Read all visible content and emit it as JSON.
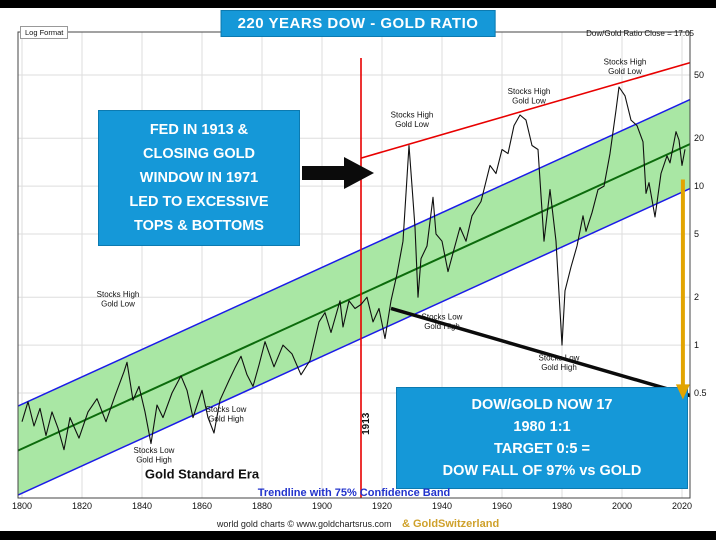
{
  "header": {
    "log_format": "Log Format",
    "ratio_close": "Dow/Gold Ratio Close = 17.05"
  },
  "callouts": {
    "fed": {
      "lines": [
        "FED IN 1913 &",
        "CLOSING GOLD",
        "WINDOW IN 1971",
        "LED TO EXCESSIVE",
        "TOPS & BOTTOMS"
      ]
    },
    "target": {
      "lines": [
        "DOW/GOLD NOW 17",
        "1980 1:1",
        "TARGET 0:5 =",
        "DOW FALL OF 97% vs GOLD"
      ]
    }
  },
  "captions": {
    "trendline": "Trendline with 75% Confidence Band"
  },
  "credits": {
    "source": "world gold charts © www.goldchartsrus.com",
    "brand": "& GoldSwitzerland"
  },
  "colors": {
    "callout_blue": "#1598d8",
    "band_green": "#a9e7a4",
    "trend_green": "#0c6b0c",
    "channel_blue": "#1b1be8",
    "resistance_red": "#e80000",
    "support_black": "#0b0b0b",
    "arrow_gold": "#e2a400",
    "brand_gold": "#cfa12b",
    "caption_blue": "#2233cc"
  },
  "chart_data": {
    "type": "line",
    "title": "220 YEARS DOW - GOLD RATIO",
    "y_scale": "log",
    "xlim": [
      1798,
      2023
    ],
    "ylim": [
      0.11,
      85
    ],
    "x_ticks": [
      1800,
      1820,
      1840,
      1860,
      1880,
      1900,
      1920,
      1940,
      1960,
      1980,
      2000,
      2020
    ],
    "y_ticks": [
      50,
      20,
      10,
      5,
      2,
      1,
      0.5
    ],
    "grid": true,
    "series": [
      {
        "name": "Dow/Gold Ratio",
        "x": [
          1800,
          1802,
          1804,
          1806,
          1808,
          1810,
          1812,
          1814,
          1816,
          1819,
          1822,
          1825,
          1828,
          1831,
          1834,
          1835,
          1837,
          1839,
          1841,
          1843,
          1845,
          1847,
          1850,
          1853,
          1855,
          1857,
          1860,
          1862,
          1864,
          1866,
          1869,
          1871,
          1873,
          1875,
          1877,
          1879,
          1881,
          1884,
          1887,
          1890,
          1893,
          1896,
          1899,
          1901,
          1903,
          1906,
          1907,
          1909,
          1911,
          1913,
          1915,
          1917,
          1919,
          1921,
          1923,
          1925,
          1927,
          1929,
          1930,
          1931,
          1932,
          1933,
          1935,
          1937,
          1938,
          1940,
          1942,
          1944,
          1946,
          1948,
          1950,
          1953,
          1956,
          1958,
          1960,
          1962,
          1964,
          1966,
          1968,
          1970,
          1972,
          1974,
          1976,
          1978,
          1980,
          1981,
          1983,
          1985,
          1987,
          1988,
          1990,
          1992,
          1994,
          1996,
          1998,
          1999,
          2001,
          2003,
          2005,
          2007,
          2008,
          2009,
          2011,
          2013,
          2015,
          2016,
          2018,
          2019,
          2020,
          2021
        ],
        "y": [
          0.33,
          0.44,
          0.31,
          0.4,
          0.27,
          0.38,
          0.3,
          0.22,
          0.35,
          0.26,
          0.38,
          0.46,
          0.33,
          0.48,
          0.68,
          0.78,
          0.45,
          0.55,
          0.38,
          0.24,
          0.42,
          0.35,
          0.5,
          0.64,
          0.52,
          0.35,
          0.52,
          0.35,
          0.28,
          0.45,
          0.6,
          0.72,
          0.85,
          0.65,
          0.55,
          0.75,
          1.05,
          0.73,
          1.0,
          0.88,
          0.65,
          0.8,
          1.4,
          1.6,
          1.2,
          1.9,
          1.3,
          1.9,
          1.7,
          1.8,
          2.0,
          1.4,
          1.7,
          1.1,
          1.9,
          2.8,
          4.5,
          18.0,
          10.0,
          5.5,
          2.0,
          3.5,
          4.2,
          8.5,
          5.0,
          4.5,
          2.9,
          4.0,
          5.5,
          4.5,
          6.5,
          8.0,
          13.5,
          12.0,
          17.0,
          16.0,
          24.0,
          28.0,
          26.0,
          18.0,
          17.0,
          4.5,
          9.5,
          4.5,
          1.0,
          2.2,
          3.1,
          4.2,
          6.5,
          5.2,
          6.8,
          9.5,
          10.0,
          16.0,
          30.0,
          42.0,
          37.0,
          26.0,
          24.0,
          19.0,
          9.0,
          10.5,
          6.4,
          12.0,
          15.5,
          14.0,
          22.0,
          19.5,
          13.5,
          17.05
        ]
      }
    ],
    "trend_channel": {
      "label": "Trendline with 75% Confidence Band",
      "start_year": 1797,
      "end_year": 2023,
      "center_start": 0.21,
      "center_end": 18.5,
      "band_decades": 0.28
    },
    "resistance_line": {
      "from": {
        "year": 1913,
        "value": 15
      },
      "to": {
        "year": 2023,
        "value": 60
      }
    },
    "support_line": {
      "from": {
        "year": 1923,
        "value": 1.7
      },
      "to": {
        "year": 2023,
        "value": 0.48
      }
    },
    "vertical_line": {
      "year": 1913,
      "label": "1913"
    },
    "target_arrow": {
      "year": 2020.3,
      "from": 11,
      "to": 0.55
    },
    "annotations": [
      {
        "lines": [
          "Stocks High",
          "Gold Low"
        ],
        "year": 1832,
        "value": 2.0
      },
      {
        "lines": [
          "Stocks Low",
          "Gold High"
        ],
        "year": 1844,
        "value": 0.21
      },
      {
        "lines": [
          "Stocks Low",
          "Gold High"
        ],
        "year": 1868,
        "value": 0.38
      },
      {
        "lines": [
          "Stocks High",
          "Gold Low"
        ],
        "year": 1930,
        "value": 27
      },
      {
        "lines": [
          "Stocks Low",
          "Gold High"
        ],
        "year": 1940,
        "value": 1.45
      },
      {
        "lines": [
          "Stocks High",
          "Gold Low"
        ],
        "year": 1969,
        "value": 38
      },
      {
        "lines": [
          "Stocks Low",
          "Gold High"
        ],
        "year": 1979,
        "value": 0.8
      },
      {
        "lines": [
          "Stocks High",
          "Gold Low"
        ],
        "year": 2001,
        "value": 58
      },
      {
        "lines": [
          "Gold Standard Era"
        ],
        "year": 1860,
        "value": 0.145,
        "style": "era"
      },
      {
        "lines": [
          "1913"
        ],
        "year": 1913,
        "value": 0.32,
        "style": "vertical"
      }
    ]
  }
}
